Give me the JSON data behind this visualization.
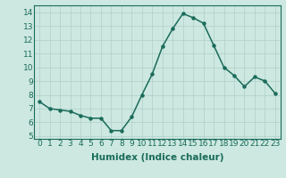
{
  "x": [
    0,
    1,
    2,
    3,
    4,
    5,
    6,
    7,
    8,
    9,
    10,
    11,
    12,
    13,
    14,
    15,
    16,
    17,
    18,
    19,
    20,
    21,
    22,
    23
  ],
  "y": [
    7.5,
    7.0,
    6.9,
    6.8,
    6.5,
    6.3,
    6.3,
    5.4,
    5.4,
    6.4,
    8.0,
    9.5,
    11.5,
    12.8,
    13.9,
    13.6,
    13.2,
    11.6,
    10.0,
    9.4,
    8.6,
    9.3,
    9.0,
    8.1
  ],
  "line_color": "#1a6b5a",
  "marker": "o",
  "marker_size": 2.2,
  "bg_color": "#cce8e0",
  "grid_color": "#b0cfc8",
  "xlabel": "Humidex (Indice chaleur)",
  "xlim": [
    -0.5,
    23.5
  ],
  "ylim": [
    4.8,
    14.5
  ],
  "yticks": [
    5,
    6,
    7,
    8,
    9,
    10,
    11,
    12,
    13,
    14
  ],
  "xticks": [
    0,
    1,
    2,
    3,
    4,
    5,
    6,
    7,
    8,
    9,
    10,
    11,
    12,
    13,
    14,
    15,
    16,
    17,
    18,
    19,
    20,
    21,
    22,
    23
  ],
  "xlabel_fontsize": 7.5,
  "tick_fontsize": 6.5,
  "linewidth": 1.1
}
